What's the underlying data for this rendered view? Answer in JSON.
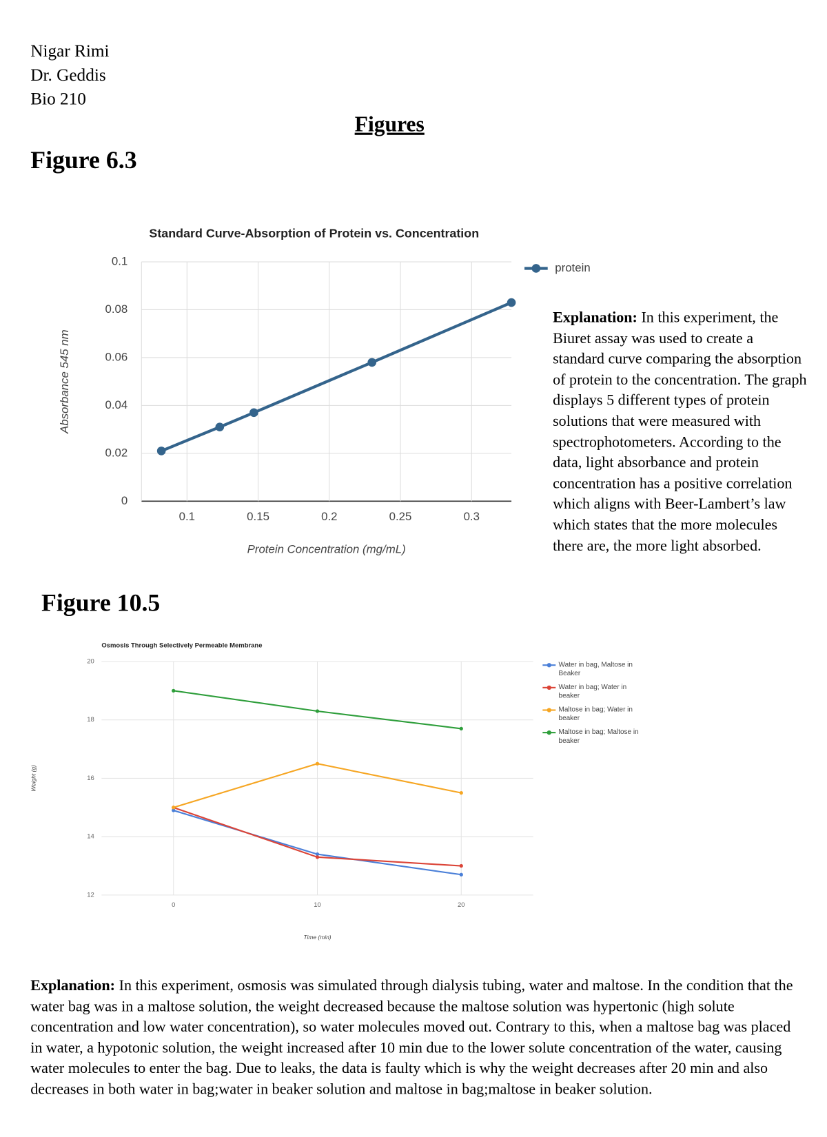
{
  "header": {
    "name": "Nigar Rimi",
    "instructor": "Dr. Geddis",
    "course": "Bio 210",
    "title": "Figures"
  },
  "figures": [
    {
      "label": "Figure 6.3",
      "explanation_label": "Explanation:",
      "explanation": "In this experiment, the Biuret assay was used to create a standard curve comparing the absorption of protein to the concentration. The graph displays 5 different types of protein solutions that were measured with spectrophotometers. According to the data, light absorbance and protein concentration has a positive correlation which aligns with Beer-Lambert’s law which states that the more molecules there are, the more light absorbed."
    },
    {
      "label": "Figure 10.5",
      "explanation_label": "Explanation:",
      "explanation": "In this experiment, osmosis was simulated through dialysis tubing, water and maltose. In the condition that the water bag was in a maltose solution, the weight decreased because the maltose solution was hypertonic (high solute concentration and low water concentration), so water molecules moved out. Contrary to this, when a maltose bag was placed in water, a hypotonic solution, the weight increased after 10 min due to the  lower solute concentration of the water, causing water molecules to enter the bag. Due to leaks, the data is faulty which is why the weight decreases after 20 min and also decreases in both water in bag;water in beaker solution and maltose in bag;maltose in beaker solution."
    }
  ],
  "chart_data": [
    {
      "type": "line",
      "title": "Standard Curve-Absorption of Protein vs. Concentration",
      "x_label": "Protein Concentration (mg/mL)",
      "y_label": "Absorbance 545 nm",
      "x": [
        0.082,
        0.123,
        0.147,
        0.23,
        0.328
      ],
      "series": [
        {
          "name": "protein",
          "color": "#34648c",
          "values": [
            0.021,
            0.031,
            0.037,
            0.058,
            0.083
          ]
        }
      ],
      "xlim": [
        0.068,
        0.328
      ],
      "ylim": [
        0,
        0.1
      ],
      "xticks": [
        0.1,
        0.15,
        0.2,
        0.25,
        0.3
      ],
      "yticks": [
        0,
        0.02,
        0.04,
        0.06,
        0.08,
        0.1
      ],
      "grid": true,
      "legend": "right"
    },
    {
      "type": "line",
      "title": "Osmosis Through Selectively Permeable Membrane",
      "x_label": "Time (min)",
      "y_label": "Weight (g)",
      "x": [
        0,
        10,
        20
      ],
      "series": [
        {
          "name": "Water in bag, Maltose in Beaker",
          "color": "#4a7fd8",
          "values": [
            14.9,
            13.4,
            12.7
          ]
        },
        {
          "name": "Water in bag; Water in beaker",
          "color": "#db4437",
          "values": [
            15.0,
            13.3,
            13.0
          ]
        },
        {
          "name": "Maltose in bag; Water in beaker",
          "color": "#f6a623",
          "values": [
            15.0,
            16.5,
            15.5
          ]
        },
        {
          "name": "Maltose in bag; Maltose in beaker",
          "color": "#2e9e3b",
          "values": [
            19.0,
            18.3,
            17.7
          ]
        }
      ],
      "xlim": [
        -5,
        25
      ],
      "ylim": [
        12,
        20
      ],
      "xticks": [
        0,
        10,
        20
      ],
      "yticks": [
        12,
        14,
        16,
        18,
        20
      ],
      "grid": true,
      "legend": "right"
    }
  ]
}
